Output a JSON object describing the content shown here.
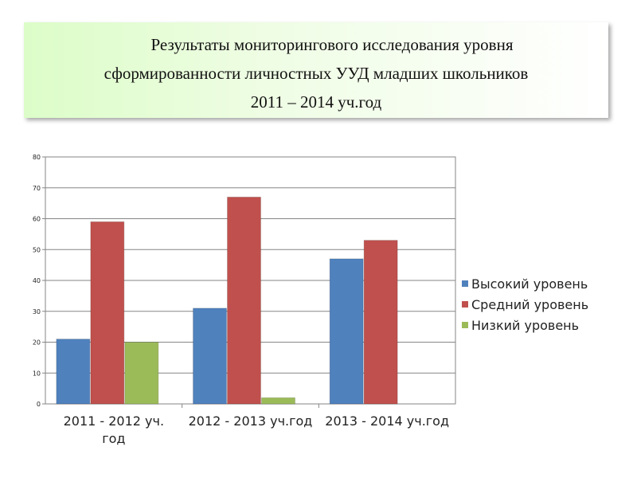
{
  "title": {
    "line1": "Результаты мониторингового исследования уровня",
    "line2": "сформированности личностных УУД младших школьников",
    "line3": "2011 – 2014 уч.год"
  },
  "chart_data": {
    "type": "bar",
    "categories": [
      [
        "2011 - 2012 уч.",
        "год"
      ],
      [
        "2012 - 2013 уч.год"
      ],
      [
        "2013 - 2014 уч.год"
      ]
    ],
    "series": [
      {
        "name": "Высокий уровень",
        "values": [
          21,
          31,
          47
        ],
        "color": "#4f81bd"
      },
      {
        "name": "Средний уровень",
        "values": [
          59,
          67,
          53
        ],
        "color": "#c0504d"
      },
      {
        "name": "Низкий уровень",
        "values": [
          20,
          2,
          0
        ],
        "color": "#9bbb59"
      }
    ],
    "yticks": [
      "0",
      "10",
      "20",
      "30",
      "40",
      "50",
      "60",
      "70",
      "80"
    ],
    "ylim": [
      0,
      80
    ],
    "grid": "horizontal",
    "legend": "right"
  }
}
